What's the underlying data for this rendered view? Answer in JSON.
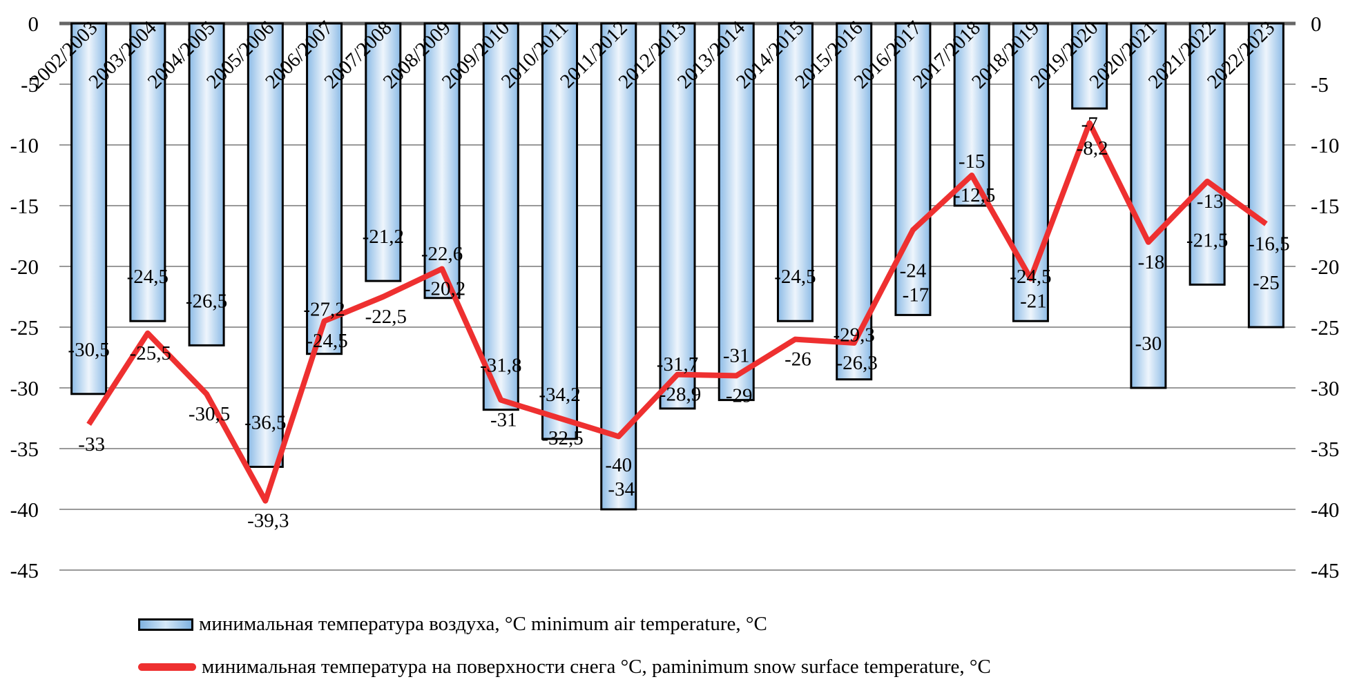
{
  "chart_data": {
    "type": "bar+line",
    "categories": [
      "2002/2003",
      "2003/2004",
      "2004/2005",
      "2005/2006",
      "2006/2007",
      "2007/2008",
      "2008/2009",
      "2009/2010",
      "2010/2011",
      "2011/2012",
      "2012/2013",
      "2013/2014",
      "2014/2015",
      "2015/2016",
      "2016/2017",
      "2017/2018",
      "2018/2019",
      "2019/2020",
      "2020/2021",
      "2021/2022",
      "2022/2023"
    ],
    "series": [
      {
        "name": "минимальная температура воздуха, °C minimum air temperature, °C",
        "type": "bar",
        "color": "#a9cdef",
        "values": [
          -30.5,
          -24.5,
          -26.5,
          -36.5,
          -27.2,
          -21.2,
          -22.6,
          -31.8,
          -34.2,
          -40,
          -31.7,
          -31,
          -24.5,
          -29.3,
          -24,
          -15,
          -24.5,
          -7,
          -30,
          -21.5,
          -25
        ],
        "labels": [
          "-30,5",
          "-24,5",
          "-26,5",
          "-36,5",
          "-27,2",
          "-21,2",
          "-22,6",
          "-31,8",
          "-34,2",
          "-40",
          "-31,7",
          "-31",
          "-24,5",
          "-29,3",
          "-24",
          "-15",
          "-24,5",
          "-7",
          "-30",
          "-21,5",
          "-25"
        ]
      },
      {
        "name": "минимальная температура на поверхности снега °C, paminimum snow surface temperature, °C",
        "type": "line",
        "color": "#ee3030",
        "values": [
          -33,
          -25.5,
          -30.5,
          -39.3,
          -24.5,
          -22.5,
          -20.2,
          -31,
          -32.5,
          -34,
          -28.9,
          -29,
          -26,
          -26.3,
          -17,
          -12.5,
          -21,
          -8.2,
          -18,
          -13,
          -16.5
        ],
        "labels": [
          "-33",
          "-25,5",
          "-30,5",
          "-39,3",
          "-24,5",
          "-22,5",
          "-20,2",
          "-31",
          "-32,5",
          "-34",
          "-28,9",
          "-29",
          "-26",
          "-26,3",
          "-17",
          "-12,5",
          "-21",
          "-8,2",
          "-18",
          "-13",
          "-16,5"
        ]
      }
    ],
    "yticks": [
      "0",
      "-5",
      "-10",
      "-15",
      "-20",
      "-25",
      "-30",
      "-35",
      "-40",
      "-45"
    ],
    "ylim": [
      -45,
      0
    ],
    "secondary_axis": true,
    "grid": true,
    "legend_position": "bottom"
  }
}
